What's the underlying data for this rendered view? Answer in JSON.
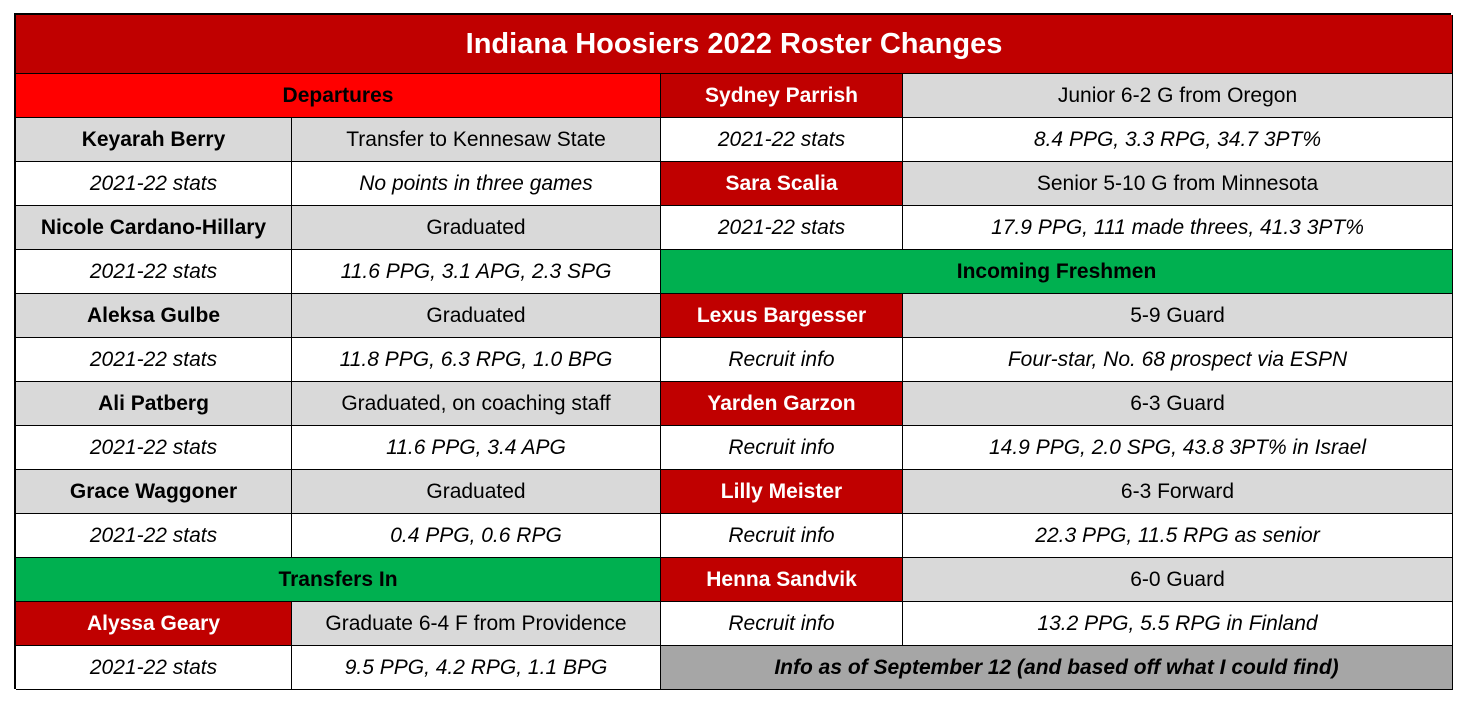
{
  "title": "Indiana Hoosiers 2022 Roster Changes",
  "departures": {
    "header": "Departures",
    "players": [
      {
        "name": "Keyarah Berry",
        "status": "Transfer to Kennesaw State",
        "stats_label": "2021-22 stats",
        "stats": "No points in three games"
      },
      {
        "name": "Nicole Cardano-Hillary",
        "status": "Graduated",
        "stats_label": "2021-22 stats",
        "stats": "11.6 PPG, 3.1 APG, 2.3 SPG"
      },
      {
        "name": "Aleksa Gulbe",
        "status": "Graduated",
        "stats_label": "2021-22 stats",
        "stats": "11.8 PPG, 6.3 RPG, 1.0 BPG"
      },
      {
        "name": "Ali Patberg",
        "status": "Graduated, on coaching staff",
        "stats_label": "2021-22 stats",
        "stats": "11.6 PPG, 3.4 APG"
      },
      {
        "name": "Grace Waggoner",
        "status": "Graduated",
        "stats_label": "2021-22 stats",
        "stats": "0.4 PPG, 0.6 RPG"
      }
    ]
  },
  "transfers_in": {
    "header": "Transfers In",
    "players": [
      {
        "name": "Alyssa Geary",
        "info": "Graduate 6-4 F from Providence",
        "stats_label": "2021-22 stats",
        "stats": "9.5 PPG, 4.2 RPG, 1.1 BPG"
      },
      {
        "name": "Sydney Parrish",
        "info": "Junior 6-2 G from Oregon",
        "stats_label": "2021-22 stats",
        "stats": "8.4 PPG,  3.3 RPG, 34.7 3PT%"
      },
      {
        "name": "Sara Scalia",
        "info": "Senior 5-10 G from Minnesota",
        "stats_label": "2021-22 stats",
        "stats": "17.9 PPG, 111 made threes, 41.3 3PT%"
      }
    ]
  },
  "freshmen": {
    "header": "Incoming Freshmen",
    "players": [
      {
        "name": "Lexus Bargesser",
        "info": "5-9 Guard",
        "stats_label": "Recruit info",
        "stats": "Four-star, No. 68 prospect via ESPN"
      },
      {
        "name": "Yarden Garzon",
        "info": "6-3 Guard",
        "stats_label": "Recruit info",
        "stats": "14.9 PPG, 2.0 SPG, 43.8 3PT% in Israel"
      },
      {
        "name": "Lilly Meister",
        "info": "6-3 Forward",
        "stats_label": "Recruit info",
        "stats": "22.3 PPG, 11.5 RPG as senior"
      },
      {
        "name": "Henna Sandvik",
        "info": "6-0 Guard",
        "stats_label": "Recruit info",
        "stats": "13.2 PPG, 5.5 RPG in Finland"
      }
    ]
  },
  "note": "Info as of September 12 (and based off what I could find)",
  "colors": {
    "title_bg": "#c00000",
    "departures_header_bg": "#ff0000",
    "green_header_bg": "#00b050",
    "name_bg": "#d9d9d9",
    "note_bg": "#a6a6a6"
  }
}
